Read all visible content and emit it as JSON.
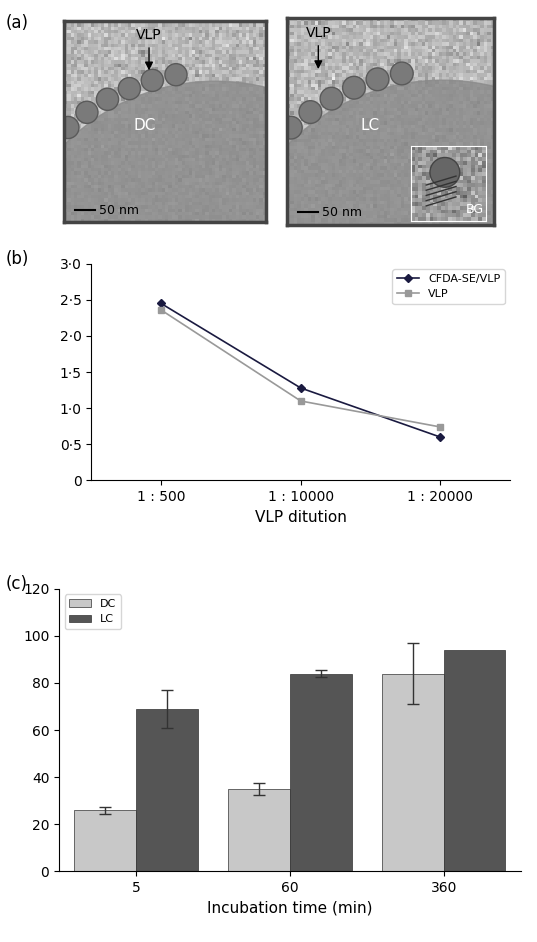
{
  "figure": {
    "panel_label": "(a)",
    "images": [
      {
        "labels": [
          "VLP",
          "DC"
        ],
        "scale_bar": "50 nm"
      },
      {
        "labels": [
          "VLP",
          "LC"
        ],
        "inset_label": "BG",
        "scale_bar": "50 nm"
      }
    ]
  },
  "chart_data": [
    {
      "type": "line",
      "title": "(b)",
      "categories": [
        "1 : 500",
        "1 : 10000",
        "1 : 20000"
      ],
      "x_label": "VLP ditution",
      "series": [
        {
          "name": "CFDA-SE/VLP",
          "color": "#1a1a40",
          "marker": "diamond",
          "values": [
            2.45,
            1.28,
            0.6
          ]
        },
        {
          "name": "VLP",
          "color": "#999999",
          "marker": "square",
          "values": [
            2.36,
            1.1,
            0.74
          ]
        }
      ],
      "ylim": [
        0,
        3
      ],
      "yticks": [
        0,
        {
          "value": 0.5,
          "label": "0·5"
        },
        {
          "value": 1.0,
          "label": "1·0"
        },
        {
          "value": 1.5,
          "label": "1·5"
        },
        {
          "value": 2.0,
          "label": "2·0"
        },
        {
          "value": 2.5,
          "label": "2·5"
        },
        {
          "value": 3.0,
          "label": "3·0"
        }
      ],
      "legend": "upper right"
    },
    {
      "type": "bar",
      "title": "(c)",
      "categories": [
        "5",
        "60",
        "360"
      ],
      "x_label": "Incubation time (min)",
      "series": [
        {
          "name": "DC",
          "color": "#c8c8c8",
          "values": [
            26,
            35,
            84
          ],
          "errors": [
            1.5,
            2.5,
            13
          ]
        },
        {
          "name": "LC",
          "color": "#555555",
          "values": [
            69,
            84,
            94
          ],
          "errors": [
            8,
            1.5,
            null
          ]
        }
      ],
      "ylim": [
        0,
        120
      ],
      "yticks": [
        0,
        20,
        40,
        60,
        80,
        100,
        120
      ],
      "legend": "upper left"
    }
  ]
}
